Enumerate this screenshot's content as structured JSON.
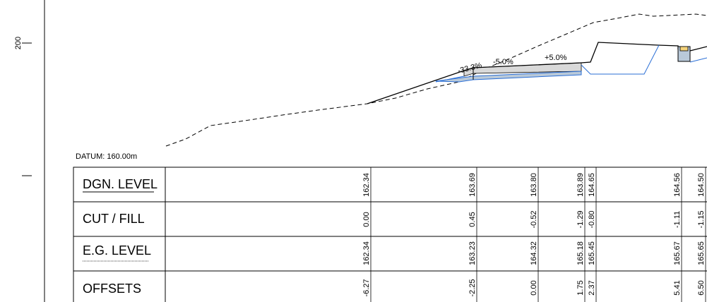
{
  "left_axis": {
    "tick_label": "200"
  },
  "datum": "DATUM: 160.00m",
  "table": {
    "rows": [
      {
        "key": "dgn_level",
        "label": "DGN. LEVEL"
      },
      {
        "key": "cut_fill",
        "label": "CUT / FILL"
      },
      {
        "key": "eg_level",
        "label": "E.G. LEVEL"
      },
      {
        "key": "offsets",
        "label": "OFFSETS"
      }
    ],
    "columns": [
      {
        "dgn_level": "162.34",
        "cut_fill": "0.00",
        "eg_level": "162.34",
        "offsets": "-6.27"
      },
      {
        "dgn_level": "163.69",
        "cut_fill": "0.45",
        "eg_level": "163.23",
        "offsets": "-2.25"
      },
      {
        "dgn_level": "163.80",
        "cut_fill": "-0.52",
        "eg_level": "164.32",
        "offsets": "0.00"
      },
      {
        "dgn_level": "163.89",
        "cut_fill": "-1.29",
        "eg_level": "165.18",
        "offsets": "1.75"
      },
      {
        "dgn_level": "164.65",
        "cut_fill": "-0.80",
        "eg_level": "165.45",
        "offsets": "2.37"
      },
      {
        "dgn_level": "164.56",
        "cut_fill": "-1.11",
        "eg_level": "165.67",
        "offsets": "5.41"
      },
      {
        "dgn_level": "164.50",
        "cut_fill": "-1.15",
        "eg_level": "165.65",
        "offsets": "6.50"
      }
    ]
  },
  "grade_labels": [
    "-33.3%",
    "-5.0%",
    "+5.0%"
  ],
  "colors": {
    "line": "#000000",
    "subgrade": "#2b6fd6",
    "pavement_fill": "#d9d9d9",
    "pavement_fill_blue": "#b9c9d9",
    "structure_fill": "#f3d27a"
  }
}
